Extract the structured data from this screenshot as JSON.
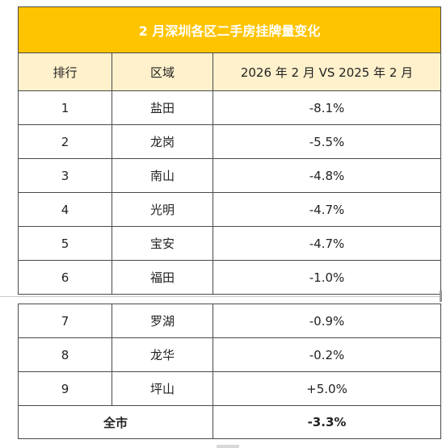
{
  "title": "2 月深圳各区二手房挂牌量变化",
  "headers": {
    "rank": "排行",
    "area": "区域",
    "change": "2026 年 2 月 VS 2025 年 2 月"
  },
  "rows_top": [
    {
      "rank": "1",
      "area": "盐田",
      "change": "-8.1%"
    },
    {
      "rank": "2",
      "area": "龙岗",
      "change": "-5.5%"
    },
    {
      "rank": "3",
      "area": "南山",
      "change": "-4.8%"
    },
    {
      "rank": "4",
      "area": "光明",
      "change": "-4.7%"
    },
    {
      "rank": "5",
      "area": "宝安",
      "change": "-4.7%"
    },
    {
      "rank": "6",
      "area": "福田",
      "change": "-1.0%"
    }
  ],
  "rows_bottom": [
    {
      "rank": "7",
      "area": "罗湖",
      "change": "-0.9%"
    },
    {
      "rank": "8",
      "area": "龙华",
      "change": "-0.2%"
    },
    {
      "rank": "9",
      "area": "坪山",
      "change": "+5.0%"
    }
  ],
  "total": {
    "label": "全市",
    "change": "-3.3%"
  },
  "colors": {
    "title_bg": "#ffc400",
    "header_bg": "#fff1cc",
    "border": "#4a4a4a"
  }
}
